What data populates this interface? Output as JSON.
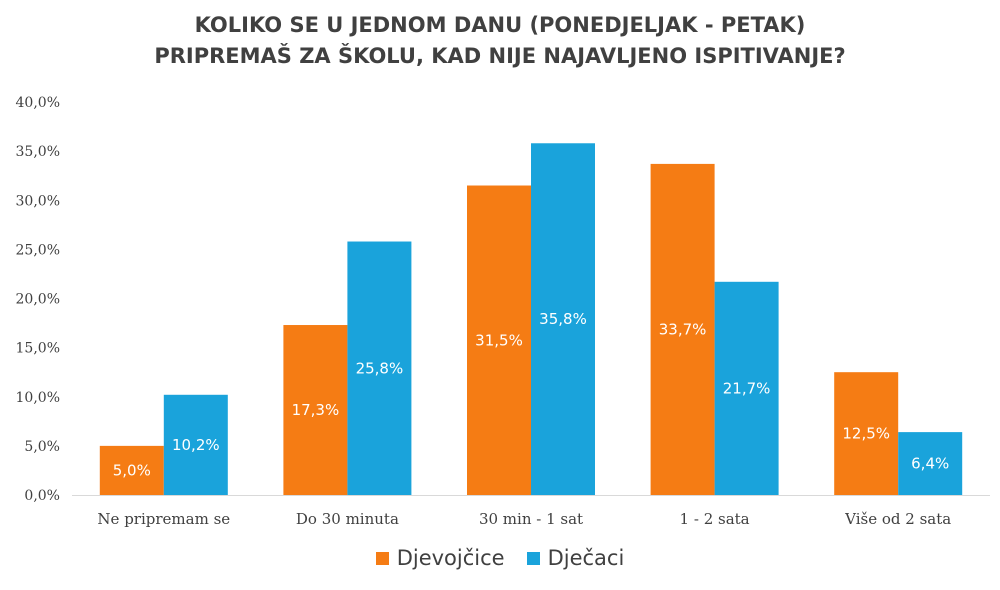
{
  "chart_data": {
    "type": "bar",
    "title_lines": [
      "KOLIKO SE U JEDNOM DANU (PONEDJELJAK - PETAK)",
      "PRIPREMAŠ ZA ŠKOLU, KAD NIJE NAJAVLJENO ISPITIVANJE?"
    ],
    "categories": [
      "Ne pripremam se",
      "Do 30 minuta",
      "30 min - 1 sat",
      "1 - 2 sata",
      "Više od 2 sata"
    ],
    "series": [
      {
        "name": "Djevojčice",
        "color": "#f57c14",
        "values": [
          5.0,
          17.3,
          31.5,
          33.7,
          12.5
        ],
        "labels": [
          "5,0%",
          "17,3%",
          "31,5%",
          "33,7%",
          "12,5%"
        ]
      },
      {
        "name": "Dječaci",
        "color": "#1aa3db",
        "values": [
          10.2,
          25.8,
          35.8,
          21.7,
          6.4
        ],
        "labels": [
          "10,2%",
          "25,8%",
          "35,8%",
          "21,7%",
          "6,4%"
        ]
      }
    ],
    "y_ticks": [
      0,
      5,
      10,
      15,
      20,
      25,
      30,
      35,
      40
    ],
    "y_tick_labels": [
      "0,0%",
      "5,0%",
      "10,0%",
      "15,0%",
      "20,0%",
      "25,0%",
      "30,0%",
      "35,0%",
      "40,0%"
    ],
    "ylim": [
      0,
      40
    ],
    "grid": false,
    "legend_position": "bottom"
  }
}
